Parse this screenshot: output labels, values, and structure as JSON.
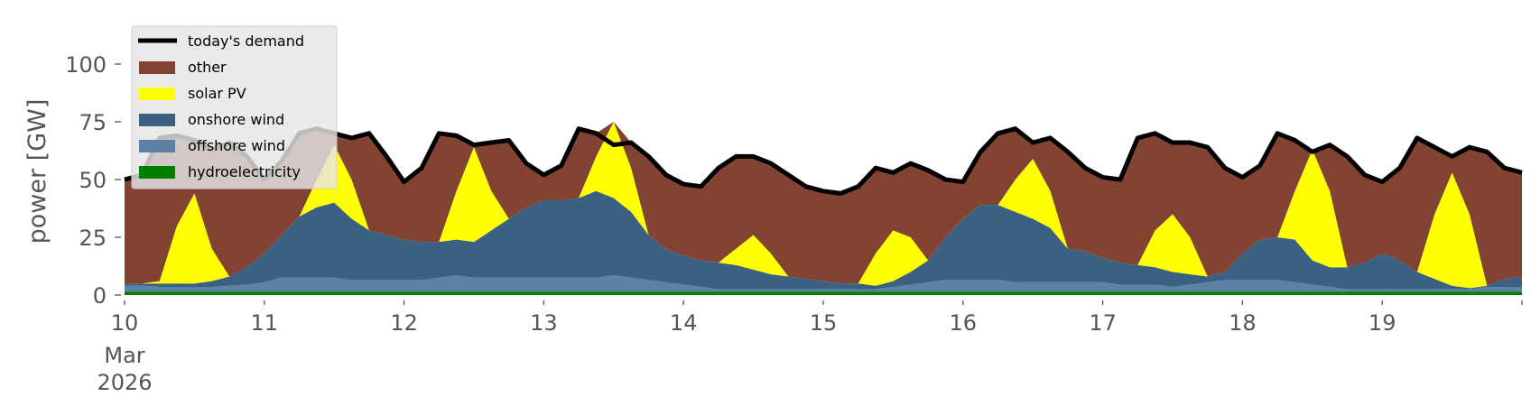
{
  "chart_data": {
    "type": "area",
    "stacked": true,
    "title": "",
    "xlabel": "",
    "ylabel": "power [GW]",
    "ylim": [
      0,
      115
    ],
    "xlim_days": [
      10,
      20
    ],
    "yticks": [
      0,
      25,
      50,
      75,
      100
    ],
    "xticks": [
      {
        "day": 10,
        "label": "10",
        "sub": [
          "Mar",
          "2026"
        ]
      },
      {
        "day": 11,
        "label": "11"
      },
      {
        "day": 12,
        "label": "12"
      },
      {
        "day": 13,
        "label": "13"
      },
      {
        "day": 14,
        "label": "14"
      },
      {
        "day": 15,
        "label": "15"
      },
      {
        "day": 16,
        "label": "16"
      },
      {
        "day": 17,
        "label": "17"
      },
      {
        "day": 18,
        "label": "18"
      },
      {
        "day": 19,
        "label": "19"
      },
      {
        "day": 20,
        "label": ""
      }
    ],
    "grid": false,
    "legend_position": "top-left",
    "x_step_hours": 3,
    "x_start_day": 10,
    "series": [
      {
        "name": "hydroelectricity",
        "color": "#008000",
        "values": [
          1.5,
          1.5,
          1.5,
          1.5,
          1.5,
          1.5,
          1.5,
          1.5,
          1.5,
          1.5,
          1.5,
          1.5,
          1.5,
          1.5,
          1.5,
          1.5,
          1.5,
          1.5,
          1.5,
          1.5,
          1.5,
          1.5,
          1.5,
          1.5,
          1.5,
          1.5,
          1.5,
          1.5,
          1.5,
          1.5,
          1.5,
          1.5,
          1.5,
          1.5,
          1.5,
          1.5,
          1.5,
          1.5,
          1.5,
          1.5,
          1.5,
          1.5,
          1.5,
          1.5,
          1.5,
          1.5,
          1.5,
          1.5,
          1.5,
          1.5,
          1.5,
          1.5,
          1.5,
          1.5,
          1.5,
          1.5,
          1.5,
          1.5,
          1.5,
          1.5,
          1.5,
          1.5,
          1.5,
          1.5,
          1.5,
          1.5,
          1.5,
          1.5,
          1.5,
          1.5,
          1.5,
          1.5,
          1.5,
          1.5,
          1.5,
          1.5,
          1.5,
          1.5,
          1.5,
          1.5,
          1.5
        ]
      },
      {
        "name": "offshore wind",
        "color": "#5b82a6",
        "values": [
          2.5,
          2.5,
          2,
          2,
          2,
          2,
          2.5,
          3,
          4,
          6,
          6,
          6,
          6,
          5,
          5,
          5,
          5,
          5,
          6,
          7,
          6,
          6,
          6,
          6,
          6,
          6,
          6,
          6,
          7,
          6,
          5,
          4,
          3,
          2,
          1,
          1,
          1,
          1,
          1,
          1,
          1,
          1,
          1,
          1,
          2,
          3,
          4,
          5,
          5,
          5,
          5,
          4,
          4,
          4,
          4,
          4,
          4,
          3,
          3,
          3,
          2,
          3,
          4,
          5,
          5,
          5,
          5,
          4,
          3,
          2,
          1,
          1,
          1,
          1,
          1,
          1,
          1,
          1,
          2,
          2,
          2
        ]
      },
      {
        "name": "onshore wind",
        "color": "#3b6182",
        "values": [
          1,
          1,
          1.5,
          1.5,
          1.5,
          2.5,
          4,
          7.5,
          12.5,
          18.5,
          26.5,
          30.5,
          32.5,
          26.5,
          21.5,
          19.5,
          17.5,
          16.5,
          15.5,
          15.5,
          15.5,
          20.5,
          25.5,
          30.5,
          33.5,
          33.5,
          34.5,
          37.5,
          33.5,
          28.5,
          19.5,
          14.5,
          12.5,
          11.5,
          11.5,
          10.5,
          8.5,
          6.5,
          5.5,
          4.5,
          3.5,
          2.5,
          2.5,
          1.5,
          2.5,
          5.5,
          9.5,
          18.5,
          26.5,
          32.5,
          32.5,
          30.5,
          27.5,
          23.5,
          14.5,
          13.5,
          10.5,
          9.5,
          8.5,
          7.5,
          6.5,
          4.5,
          2.5,
          3.5,
          11.5,
          17.5,
          18.5,
          18.5,
          10.5,
          8.5,
          9.5,
          11.5,
          15.5,
          12.5,
          7.5,
          4.5,
          1.5,
          0.5,
          0.5,
          3.5,
          4.5
        ]
      },
      {
        "name": "solar PV",
        "color": "#ffff00",
        "values": [
          0,
          0,
          1,
          25,
          39,
          14,
          0,
          0,
          0,
          0,
          0,
          12,
          25,
          17,
          0,
          0,
          0,
          0,
          0,
          21,
          41,
          17,
          0,
          0,
          0,
          0,
          0,
          15,
          33,
          19,
          0,
          0,
          0,
          0,
          0,
          7,
          15,
          9,
          0,
          0,
          0,
          0,
          0,
          14,
          22,
          15,
          0,
          0,
          0,
          0,
          0,
          14,
          26,
          16,
          0,
          0,
          0,
          0,
          0,
          16,
          25,
          16,
          0,
          0,
          0,
          0,
          0,
          21,
          48,
          33,
          0,
          0,
          0,
          0,
          0,
          28,
          49,
          32,
          0,
          0,
          0
        ]
      },
      {
        "name": "other",
        "color": "#824333",
        "values": "remainder up to today's demand"
      }
    ],
    "demand": {
      "name": "today's demand",
      "color": "#000000",
      "values": [
        50,
        52,
        68,
        69,
        67,
        63,
        66,
        60,
        50,
        58,
        70,
        72,
        70,
        68,
        70,
        60,
        49,
        55,
        70,
        69,
        65,
        66,
        67,
        57,
        52,
        56,
        72,
        70,
        65,
        66,
        60,
        52,
        48,
        47,
        55,
        60,
        60,
        57,
        52,
        47,
        45,
        44,
        47,
        55,
        53,
        57,
        54,
        50,
        49,
        62,
        70,
        72,
        66,
        68,
        62,
        55,
        51,
        50,
        68,
        70,
        66,
        66,
        64,
        55,
        51,
        56,
        70,
        67,
        62,
        65,
        60,
        52,
        49,
        55,
        68,
        64,
        60,
        64,
        62,
        55,
        53
      ]
    },
    "legend": [
      "today's demand",
      "other",
      "solar PV",
      "onshore wind",
      "offshore wind",
      "hydroelectricity"
    ]
  }
}
